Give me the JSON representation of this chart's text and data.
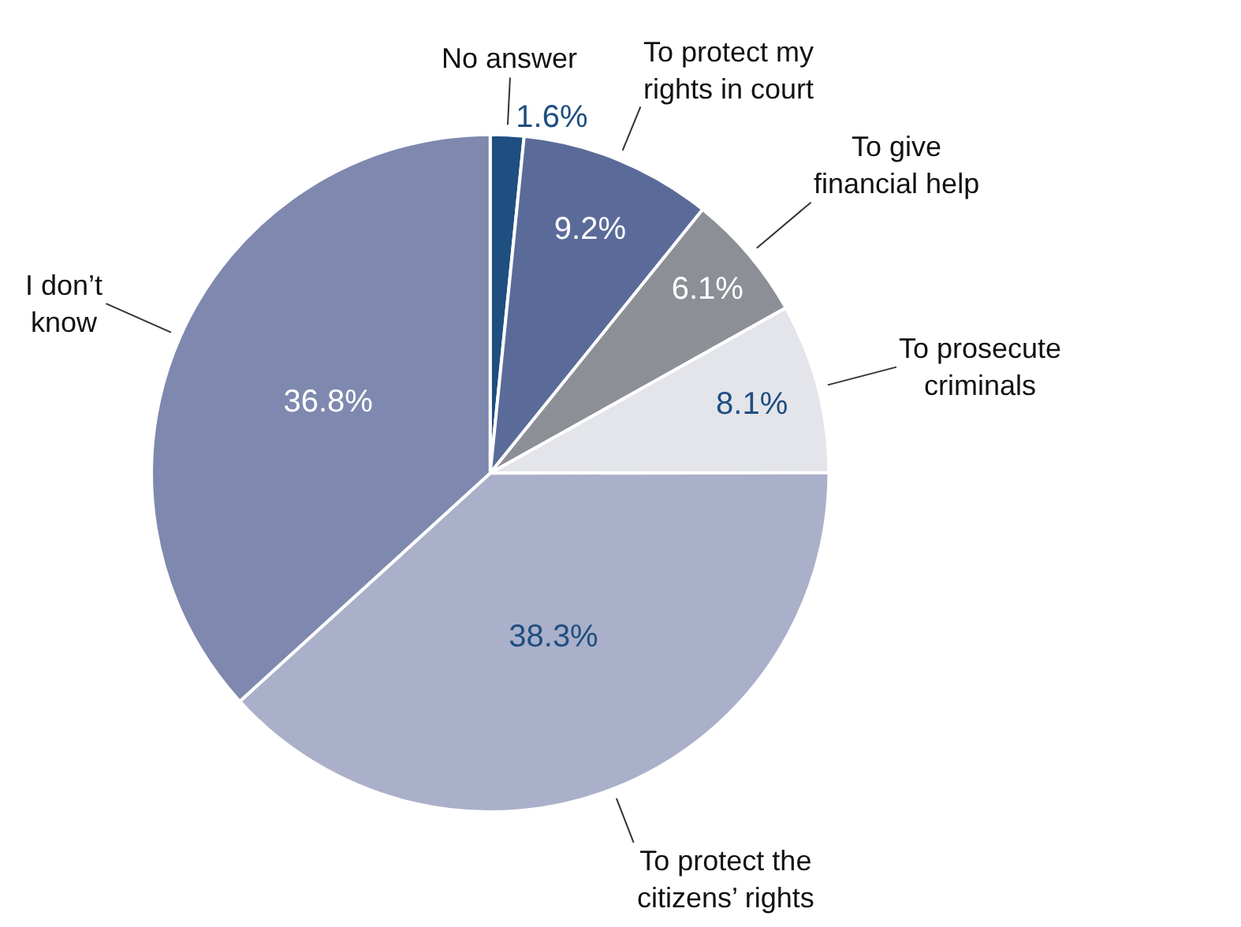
{
  "chart_data": {
    "type": "pie",
    "categories": [
      "No answer",
      "To protect my\nrights in court",
      "To give\nfinancial help",
      "To prosecute\ncriminals",
      "To protect the\ncitizens’ rights",
      "I don’t\nknow"
    ],
    "values": [
      1.6,
      9.2,
      6.1,
      8.1,
      38.3,
      36.8
    ],
    "value_labels": [
      "1.6%",
      "9.2%",
      "6.1%",
      "8.1%",
      "38.3%",
      "36.8%"
    ],
    "colors": [
      "#1f4e80",
      "#5b6b99",
      "#8d8f97",
      "#e3e5ea",
      "#aab0c9",
      "#7f88ae"
    ]
  }
}
